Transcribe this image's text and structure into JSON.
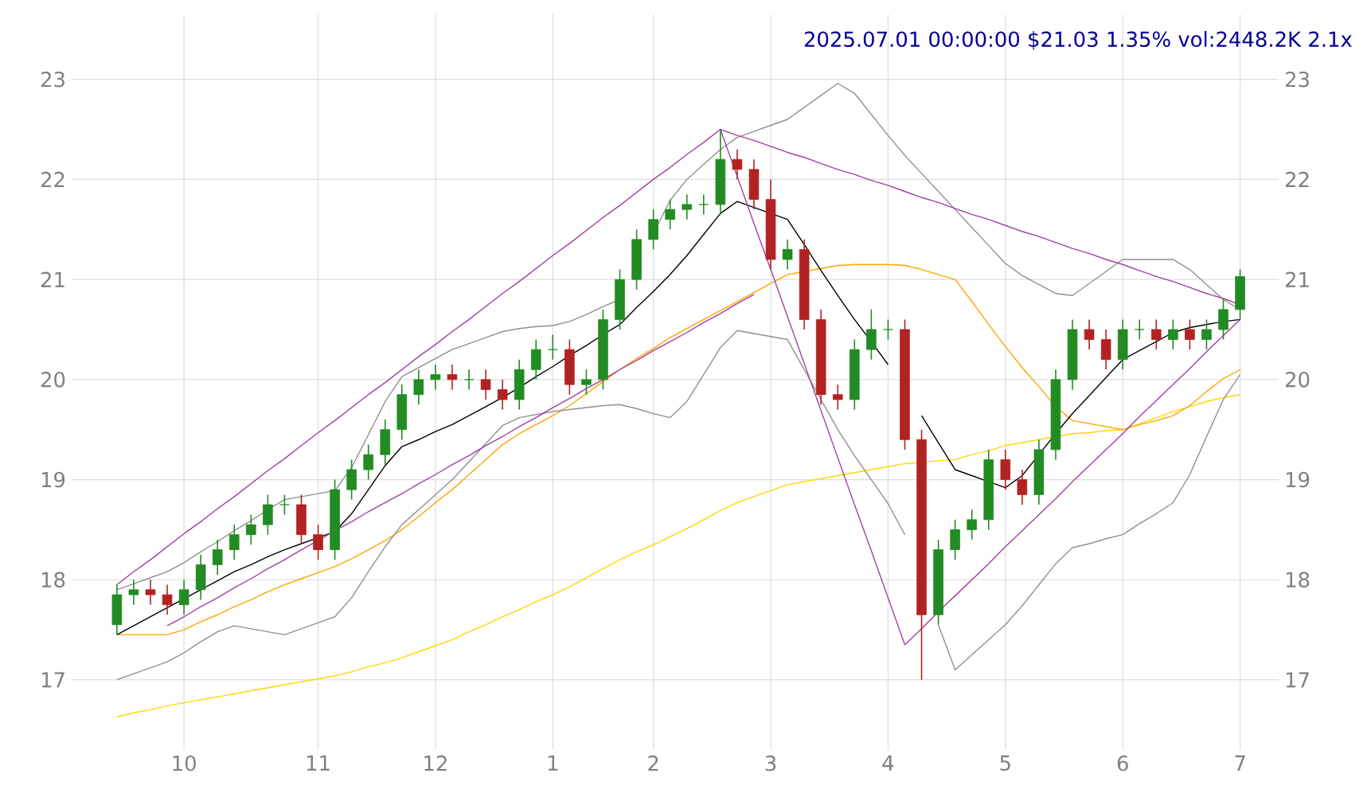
{
  "chart_data": {
    "type": "candlestick",
    "title": "2025.07.01 00:00:00 $21.03 1.35% vol:2448.2K 2.1x",
    "categories": [
      null,
      null,
      null,
      null,
      "10",
      null,
      null,
      null,
      null,
      null,
      null,
      null,
      "11",
      null,
      null,
      null,
      null,
      null,
      null,
      "12",
      null,
      null,
      null,
      null,
      null,
      null,
      "1",
      null,
      null,
      null,
      null,
      null,
      "2",
      null,
      null,
      null,
      null,
      null,
      null,
      "3",
      null,
      null,
      null,
      null,
      null,
      null,
      "4",
      null,
      null,
      null,
      null,
      null,
      null,
      "5",
      null,
      null,
      null,
      null,
      null,
      null,
      "6",
      null,
      null,
      null,
      null,
      null,
      null,
      "7"
    ],
    "ohlc": [
      [
        17.55,
        17.95,
        17.45,
        17.85
      ],
      [
        17.85,
        18.0,
        17.75,
        17.9
      ],
      [
        17.9,
        18.0,
        17.75,
        17.85
      ],
      [
        17.85,
        17.95,
        17.65,
        17.75
      ],
      [
        17.75,
        18.0,
        17.65,
        17.9
      ],
      [
        17.9,
        18.25,
        17.8,
        18.15
      ],
      [
        18.15,
        18.4,
        18.05,
        18.3
      ],
      [
        18.3,
        18.55,
        18.2,
        18.45
      ],
      [
        18.45,
        18.65,
        18.35,
        18.55
      ],
      [
        18.55,
        18.85,
        18.45,
        18.75
      ],
      [
        18.75,
        18.85,
        18.65,
        18.75
      ],
      [
        18.75,
        18.85,
        18.35,
        18.45
      ],
      [
        18.45,
        18.55,
        18.2,
        18.3
      ],
      [
        18.3,
        19.0,
        18.2,
        18.9
      ],
      [
        18.9,
        19.2,
        18.8,
        19.1
      ],
      [
        19.1,
        19.35,
        19.0,
        19.25
      ],
      [
        19.25,
        19.6,
        19.15,
        19.5
      ],
      [
        19.5,
        19.95,
        19.4,
        19.85
      ],
      [
        19.85,
        20.1,
        19.75,
        20.0
      ],
      [
        20.0,
        20.15,
        19.9,
        20.05
      ],
      [
        20.05,
        20.15,
        19.9,
        20.0
      ],
      [
        20.0,
        20.1,
        19.9,
        20.0
      ],
      [
        20.0,
        20.1,
        19.8,
        19.9
      ],
      [
        19.9,
        20.0,
        19.7,
        19.8
      ],
      [
        19.8,
        20.2,
        19.7,
        20.1
      ],
      [
        20.1,
        20.4,
        20.0,
        20.3
      ],
      [
        20.3,
        20.45,
        20.2,
        20.3
      ],
      [
        20.3,
        20.4,
        19.85,
        19.95
      ],
      [
        19.95,
        20.1,
        19.85,
        20.0
      ],
      [
        20.0,
        20.7,
        19.9,
        20.6
      ],
      [
        20.6,
        21.1,
        20.5,
        21.0
      ],
      [
        21.0,
        21.5,
        20.9,
        21.4
      ],
      [
        21.4,
        21.7,
        21.3,
        21.6
      ],
      [
        21.6,
        21.8,
        21.5,
        21.7
      ],
      [
        21.7,
        21.85,
        21.6,
        21.75
      ],
      [
        21.75,
        21.85,
        21.65,
        21.75
      ],
      [
        21.75,
        22.5,
        21.65,
        22.2
      ],
      [
        22.2,
        22.3,
        22.0,
        22.1
      ],
      [
        22.1,
        22.2,
        21.7,
        21.8
      ],
      [
        21.8,
        22.0,
        21.1,
        21.2
      ],
      [
        21.2,
        21.4,
        21.1,
        21.3
      ],
      [
        21.3,
        21.4,
        20.5,
        20.6
      ],
      [
        20.6,
        20.7,
        19.75,
        19.85
      ],
      [
        19.85,
        19.95,
        19.7,
        19.8
      ],
      [
        19.8,
        20.4,
        19.7,
        20.3
      ],
      [
        20.3,
        20.7,
        20.2,
        20.5
      ],
      [
        20.5,
        20.6,
        20.4,
        20.5
      ],
      [
        20.5,
        20.6,
        19.3,
        19.4
      ],
      [
        19.4,
        19.5,
        17.0,
        17.65
      ],
      [
        17.65,
        18.4,
        17.55,
        18.3
      ],
      [
        18.3,
        18.6,
        18.2,
        18.5
      ],
      [
        18.5,
        18.7,
        18.4,
        18.6
      ],
      [
        18.6,
        19.3,
        18.5,
        19.2
      ],
      [
        19.2,
        19.3,
        18.9,
        19.0
      ],
      [
        19.0,
        19.1,
        18.75,
        18.85
      ],
      [
        18.85,
        19.4,
        18.75,
        19.3
      ],
      [
        19.3,
        20.1,
        19.2,
        20.0
      ],
      [
        20.0,
        20.6,
        19.9,
        20.5
      ],
      [
        20.5,
        20.6,
        20.3,
        20.4
      ],
      [
        20.4,
        20.5,
        20.1,
        20.2
      ],
      [
        20.2,
        20.6,
        20.1,
        20.5
      ],
      [
        20.5,
        20.6,
        20.4,
        20.5
      ],
      [
        20.5,
        20.6,
        20.3,
        20.4
      ],
      [
        20.4,
        20.6,
        20.3,
        20.5
      ],
      [
        20.5,
        20.6,
        20.3,
        20.4
      ],
      [
        20.4,
        20.6,
        20.3,
        20.5
      ],
      [
        20.5,
        20.8,
        20.4,
        20.7
      ],
      [
        20.7,
        21.1,
        20.6,
        21.03
      ]
    ],
    "series": [
      {
        "type": "line",
        "color": "#ffd700",
        "values": [
          16.63,
          16.67,
          16.7,
          16.74,
          16.77,
          16.8,
          16.83,
          16.86,
          16.89,
          16.92,
          16.95,
          16.98,
          17.01,
          17.04,
          17.08,
          17.13,
          17.17,
          17.22,
          17.28,
          17.34,
          17.4,
          17.48,
          17.55,
          17.63,
          17.7,
          17.78,
          17.85,
          17.93,
          18.02,
          18.11,
          18.2,
          18.28,
          18.35,
          18.43,
          18.51,
          18.6,
          18.69,
          18.77,
          18.83,
          18.89,
          18.95,
          18.98,
          19.01,
          19.04,
          19.07,
          19.1,
          19.13,
          19.16,
          19.17,
          19.19,
          19.2,
          19.25,
          19.29,
          19.34,
          19.37,
          19.4,
          19.43,
          19.46,
          19.47,
          19.49,
          19.5,
          19.56,
          19.62,
          19.68,
          19.73,
          19.78,
          19.82,
          19.85
        ]
      },
      {
        "type": "line",
        "color": "#ffa500",
        "values": [
          17.45,
          17.45,
          17.45,
          17.45,
          17.5,
          17.58,
          17.65,
          17.73,
          17.8,
          17.88,
          17.95,
          18.01,
          18.07,
          18.13,
          18.21,
          18.3,
          18.39,
          18.5,
          18.63,
          18.77,
          18.9,
          19.05,
          19.2,
          19.35,
          19.46,
          19.55,
          19.64,
          19.74,
          19.86,
          19.98,
          20.1,
          20.21,
          20.31,
          20.42,
          20.51,
          20.6,
          20.69,
          20.78,
          20.87,
          20.96,
          21.05,
          21.08,
          21.11,
          21.14,
          21.15,
          21.15,
          21.15,
          21.14,
          21.1,
          21.05,
          21.0,
          20.78,
          20.55,
          20.33,
          20.12,
          19.93,
          19.73,
          19.59,
          19.56,
          19.53,
          19.5,
          19.55,
          19.59,
          19.64,
          19.74,
          19.88,
          20.01,
          20.1
        ]
      },
      {
        "type": "line",
        "color": "#909090",
        "values": [
          17.9,
          17.96,
          18.02,
          18.08,
          18.17,
          18.28,
          18.38,
          18.49,
          18.59,
          18.7,
          18.8,
          18.83,
          18.86,
          18.89,
          19.12,
          19.45,
          19.78,
          20.03,
          20.12,
          20.21,
          20.3,
          20.36,
          20.42,
          20.48,
          20.51,
          20.53,
          20.54,
          20.58,
          20.65,
          20.73,
          20.8,
          null,
          21.46,
          21.79,
          22.0,
          22.15,
          22.3,
          22.42,
          22.48,
          22.54,
          22.6,
          22.72,
          22.84,
          22.96,
          22.86,
          22.65,
          22.44,
          22.24,
          22.06,
          21.88,
          21.7,
          21.52,
          21.34,
          21.16,
          21.04,
          20.95,
          20.86,
          20.84,
          20.96,
          21.08,
          21.2,
          21.2,
          21.2,
          21.2,
          21.1,
          20.95,
          20.8,
          20.7
        ]
      },
      {
        "type": "line",
        "color": "#909090",
        "values": [
          17.0,
          17.06,
          17.12,
          17.18,
          17.27,
          17.38,
          17.48,
          17.54,
          17.51,
          17.48,
          17.45,
          17.51,
          17.57,
          17.63,
          17.82,
          18.08,
          18.33,
          18.55,
          18.7,
          18.85,
          19.0,
          19.18,
          19.36,
          19.54,
          19.62,
          19.65,
          19.68,
          19.7,
          19.72,
          19.74,
          19.75,
          19.71,
          19.66,
          19.62,
          19.78,
          20.05,
          20.32,
          20.49,
          20.46,
          20.43,
          20.4,
          20.1,
          19.8,
          19.5,
          19.24,
          19.0,
          18.76,
          18.45,
          null,
          17.55,
          17.1,
          17.25,
          17.4,
          17.55,
          17.74,
          17.95,
          18.16,
          18.32,
          18.36,
          18.41,
          18.45,
          18.56,
          18.66,
          18.77,
          19.05,
          19.43,
          19.8,
          20.05
        ]
      },
      {
        "type": "line",
        "color": "#000000",
        "values": [
          17.45,
          17.54,
          17.63,
          17.72,
          17.81,
          17.9,
          17.99,
          18.08,
          18.15,
          18.23,
          18.3,
          18.36,
          18.42,
          18.48,
          18.66,
          18.9,
          19.14,
          19.33,
          19.4,
          19.48,
          19.55,
          19.64,
          19.73,
          19.82,
          19.92,
          20.03,
          20.13,
          20.24,
          20.34,
          20.45,
          20.55,
          20.72,
          20.88,
          21.05,
          21.24,
          21.45,
          21.66,
          21.78,
          21.72,
          21.66,
          21.6,
          21.35,
          21.09,
          20.84,
          20.6,
          20.38,
          20.15,
          null,
          19.64,
          19.37,
          19.1,
          19.04,
          18.98,
          18.92,
          19.04,
          19.25,
          19.46,
          19.66,
          19.84,
          20.02,
          20.2,
          20.29,
          20.38,
          20.47,
          20.52,
          20.55,
          20.58,
          20.6
        ]
      },
      {
        "type": "line",
        "color": "#a040a0",
        "values": [
          17.95,
          18.08,
          18.2,
          18.33,
          18.46,
          18.58,
          18.71,
          18.83,
          18.96,
          19.09,
          19.21,
          19.34,
          19.47,
          19.59,
          19.72,
          19.85,
          19.97,
          20.1,
          20.23,
          20.35,
          20.48,
          20.6,
          20.73,
          20.86,
          20.98,
          21.11,
          21.24,
          21.36,
          21.49,
          21.62,
          21.74,
          21.87,
          22.0,
          22.12,
          22.25,
          22.37,
          22.5,
          null,
          null,
          null,
          null,
          null,
          null,
          null,
          null,
          null,
          null,
          null,
          null,
          null,
          null,
          null,
          null,
          null,
          null,
          null,
          null,
          null,
          null,
          null,
          null,
          null,
          null,
          null,
          null,
          null,
          null,
          null
        ]
      },
      {
        "type": "line",
        "color": "#a040a0",
        "values": [
          null,
          null,
          null,
          17.54,
          17.63,
          17.73,
          17.82,
          17.92,
          18.01,
          18.11,
          18.2,
          18.3,
          18.39,
          18.49,
          18.58,
          18.68,
          18.77,
          18.86,
          18.96,
          19.05,
          19.15,
          19.24,
          19.34,
          19.43,
          19.53,
          19.62,
          19.72,
          19.81,
          19.91,
          20.0,
          20.1,
          20.19,
          20.29,
          20.38,
          20.47,
          20.57,
          20.66,
          20.76,
          20.85,
          null,
          null,
          null,
          null,
          null,
          null,
          null,
          null,
          null,
          null,
          null,
          null,
          null,
          null,
          null,
          null,
          null,
          null,
          null,
          null,
          null,
          null,
          null,
          null,
          null,
          null,
          null,
          null,
          null
        ]
      },
      {
        "type": "line",
        "color": "#a040a0",
        "values": [
          null,
          null,
          null,
          null,
          null,
          null,
          null,
          null,
          null,
          null,
          null,
          null,
          null,
          null,
          null,
          null,
          null,
          null,
          null,
          null,
          null,
          null,
          null,
          null,
          null,
          null,
          null,
          null,
          null,
          null,
          null,
          null,
          null,
          null,
          null,
          null,
          22.5,
          22.03,
          21.56,
          21.1,
          20.63,
          20.16,
          19.69,
          19.22,
          18.75,
          18.29,
          17.82,
          17.35,
          null,
          null,
          null,
          null,
          null,
          null,
          null,
          null,
          null,
          null,
          null,
          null,
          null,
          null,
          null,
          null,
          null,
          null,
          null,
          null
        ]
      },
      {
        "type": "line",
        "color": "#a040a0",
        "values": [
          null,
          null,
          null,
          null,
          null,
          null,
          null,
          null,
          null,
          null,
          null,
          null,
          null,
          null,
          null,
          null,
          null,
          null,
          null,
          null,
          null,
          null,
          null,
          null,
          null,
          null,
          null,
          null,
          null,
          null,
          null,
          null,
          null,
          null,
          null,
          null,
          22.5,
          22.44,
          22.39,
          22.33,
          22.27,
          22.22,
          22.16,
          22.1,
          22.05,
          21.99,
          21.94,
          21.88,
          21.82,
          21.77,
          21.71,
          21.65,
          21.6,
          21.54,
          21.48,
          21.43,
          21.37,
          21.31,
          21.26,
          21.2,
          21.15,
          21.09,
          21.03,
          20.98,
          20.92,
          20.86,
          20.81,
          20.75
        ]
      },
      {
        "type": "line",
        "color": "#a040a0",
        "values": [
          null,
          null,
          null,
          null,
          null,
          null,
          null,
          null,
          null,
          null,
          null,
          null,
          null,
          null,
          null,
          null,
          null,
          null,
          null,
          null,
          null,
          null,
          null,
          null,
          null,
          null,
          null,
          null,
          null,
          null,
          null,
          null,
          null,
          null,
          null,
          null,
          null,
          null,
          null,
          null,
          null,
          null,
          null,
          null,
          null,
          null,
          null,
          17.35,
          17.51,
          17.68,
          17.84,
          18.0,
          18.16,
          18.33,
          18.49,
          18.65,
          18.81,
          18.98,
          19.14,
          19.3,
          19.46,
          19.63,
          19.79,
          19.95,
          20.11,
          20.28,
          20.44,
          20.6
        ]
      }
    ],
    "ylim": [
      16.3,
      23.65
    ],
    "yticks": [
      17,
      18,
      19,
      20,
      21,
      22,
      23
    ],
    "y2lim": [
      16.3,
      23.65
    ],
    "y2ticks": [
      17,
      18,
      19,
      20,
      21,
      22,
      23
    ],
    "grid": true
  }
}
